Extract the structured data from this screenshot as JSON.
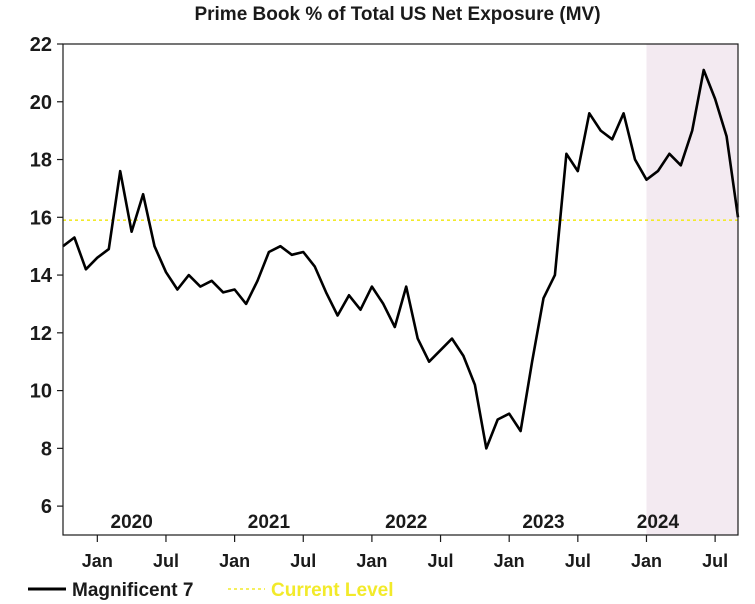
{
  "chart_data": {
    "type": "line",
    "title": "Prime Book % of Total US Net Exposure (MV)",
    "xlabel": "",
    "ylabel": "",
    "ylim": [
      5,
      22
    ],
    "y_ticks": [
      "6",
      "8",
      "10",
      "12",
      "14",
      "16",
      "18",
      "20",
      "22"
    ],
    "x_range": [
      "2019-10",
      "2024-09"
    ],
    "month_ticks": [
      {
        "label": "Jan",
        "date": "2020-01"
      },
      {
        "label": "Jul",
        "date": "2020-07"
      },
      {
        "label": "Jan",
        "date": "2021-01"
      },
      {
        "label": "Jul",
        "date": "2021-07"
      },
      {
        "label": "Jan",
        "date": "2022-01"
      },
      {
        "label": "Jul",
        "date": "2022-07"
      },
      {
        "label": "Jan",
        "date": "2023-01"
      },
      {
        "label": "Jul",
        "date": "2023-07"
      },
      {
        "label": "Jan",
        "date": "2024-01"
      },
      {
        "label": "Jul",
        "date": "2024-07"
      }
    ],
    "year_labels": [
      {
        "label": "2020",
        "date": "2020-04"
      },
      {
        "label": "2021",
        "date": "2021-04"
      },
      {
        "label": "2022",
        "date": "2022-04"
      },
      {
        "label": "2023",
        "date": "2023-04"
      },
      {
        "label": "2024",
        "date": "2024-02"
      }
    ],
    "highlight_start": "2024-01",
    "grid": false,
    "legend_position": "bottom-left",
    "colors": {
      "series": "#000000",
      "reference": "#f2ea2a",
      "highlight": "#f3eaf1"
    },
    "series": [
      {
        "name": "Magnificent 7",
        "x": [
          "2019-10",
          "2019-11",
          "2019-12",
          "2020-01",
          "2020-02",
          "2020-03",
          "2020-04",
          "2020-05",
          "2020-06",
          "2020-07",
          "2020-08",
          "2020-09",
          "2020-10",
          "2020-11",
          "2020-12",
          "2021-01",
          "2021-02",
          "2021-03",
          "2021-04",
          "2021-05",
          "2021-06",
          "2021-07",
          "2021-08",
          "2021-09",
          "2021-10",
          "2021-11",
          "2021-12",
          "2022-01",
          "2022-02",
          "2022-03",
          "2022-04",
          "2022-05",
          "2022-06",
          "2022-07",
          "2022-08",
          "2022-09",
          "2022-10",
          "2022-11",
          "2022-12",
          "2023-01",
          "2023-02",
          "2023-03",
          "2023-04",
          "2023-05",
          "2023-06",
          "2023-07",
          "2023-08",
          "2023-09",
          "2023-10",
          "2023-11",
          "2023-12",
          "2024-01",
          "2024-02",
          "2024-03",
          "2024-04",
          "2024-05",
          "2024-06",
          "2024-07",
          "2024-08",
          "2024-09"
        ],
        "y": [
          15.0,
          15.3,
          14.2,
          14.6,
          14.9,
          17.6,
          15.5,
          16.8,
          15.0,
          14.1,
          13.5,
          14.0,
          13.6,
          13.8,
          13.4,
          13.5,
          13.0,
          13.8,
          14.8,
          15.0,
          14.7,
          14.8,
          14.3,
          13.4,
          12.6,
          13.3,
          12.8,
          13.6,
          13.0,
          12.2,
          13.6,
          11.8,
          11.0,
          11.4,
          11.8,
          11.2,
          10.2,
          8.0,
          9.0,
          9.2,
          8.6,
          11.0,
          13.2,
          14.0,
          18.2,
          17.6,
          19.6,
          19.0,
          18.7,
          19.6,
          18.0,
          17.3,
          17.6,
          18.2,
          17.8,
          19.0,
          21.1,
          20.1,
          18.8,
          16.0
        ]
      },
      {
        "name": "Current Level",
        "value": 15.9
      }
    ]
  }
}
